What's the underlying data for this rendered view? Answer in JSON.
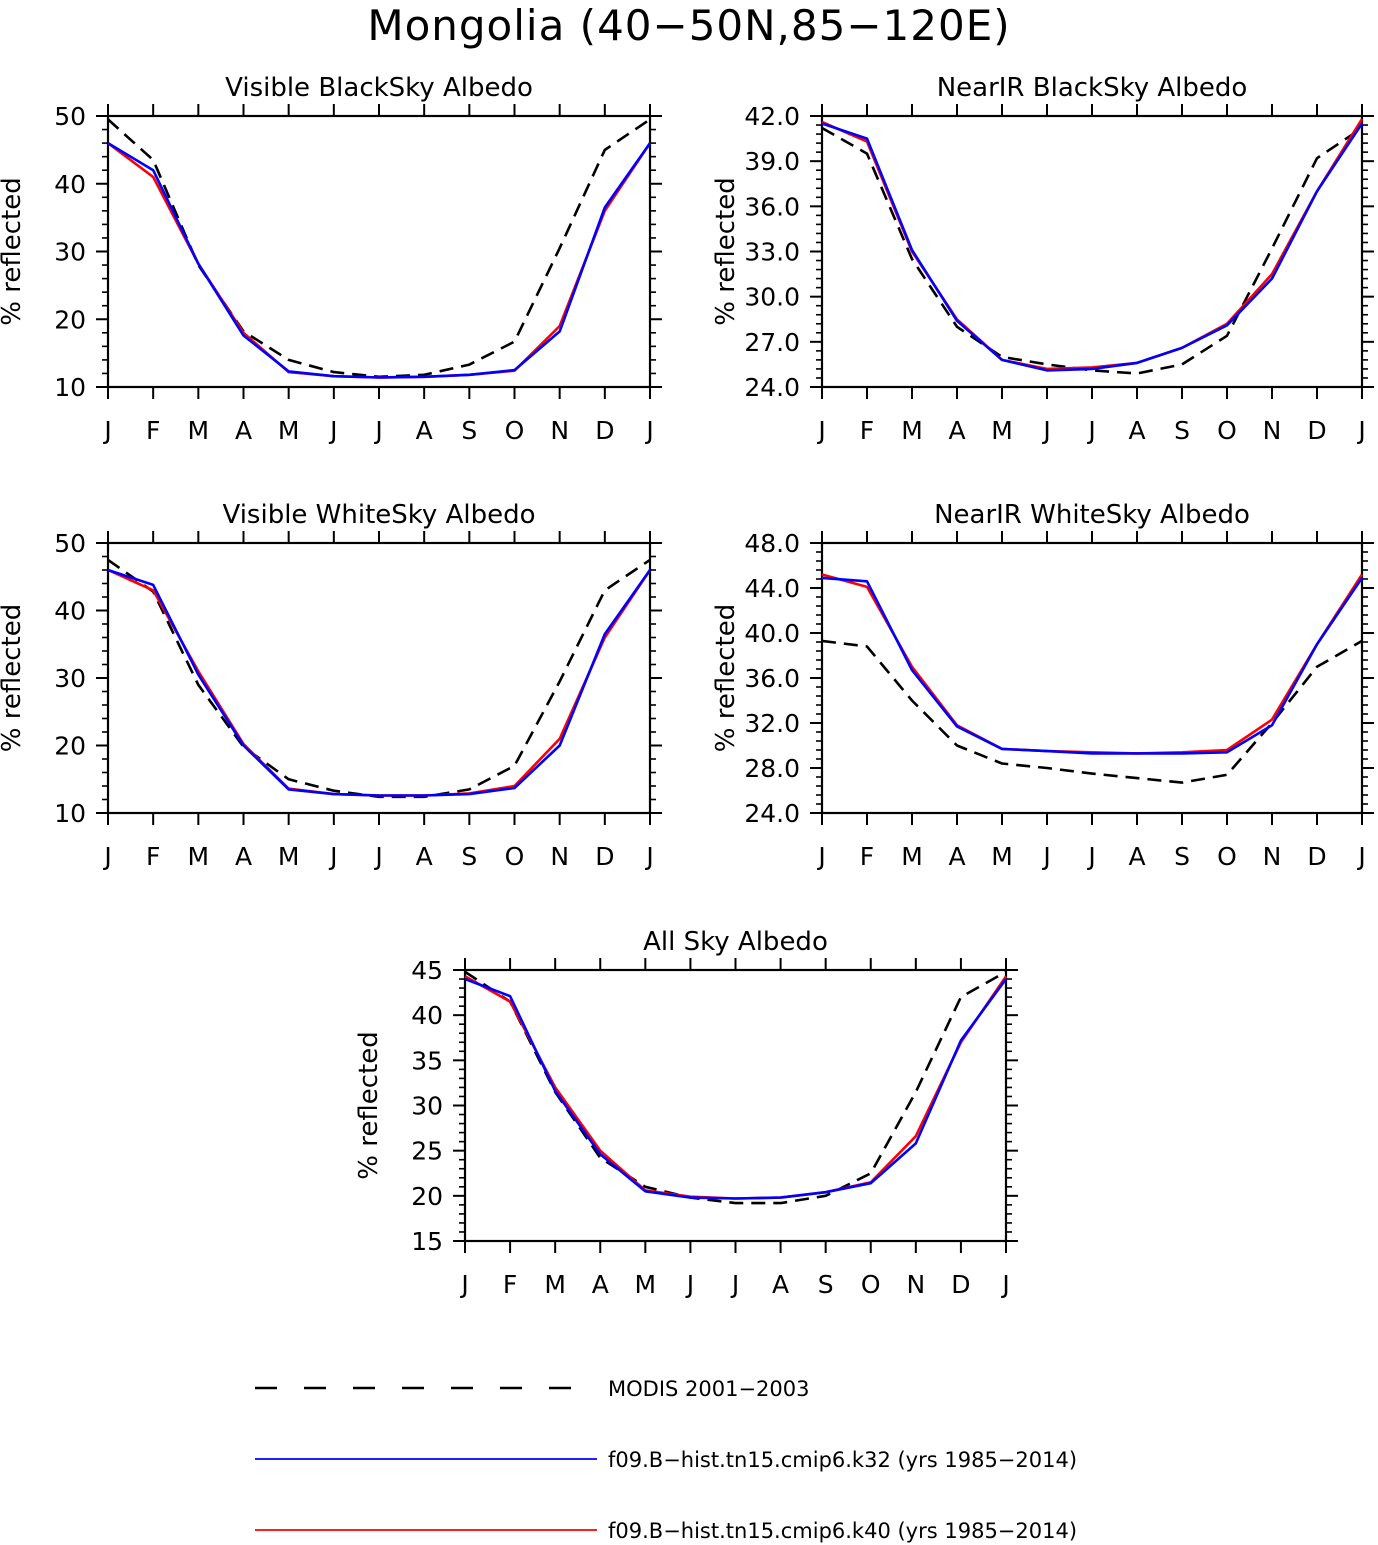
{
  "title": "Mongolia (40−50N,85−120E)",
  "months": [
    "J",
    "F",
    "M",
    "A",
    "M",
    "J",
    "J",
    "A",
    "S",
    "O",
    "N",
    "D",
    "J"
  ],
  "legend": [
    {
      "label": "MODIS 2001−2003",
      "color": "#000000",
      "dash": true
    },
    {
      "label": "f09.B−hist.tn15.cmip6.k32 (yrs 1985−2014)",
      "color": "#0000ff",
      "dash": false
    },
    {
      "label": "f09.B−hist.tn15.cmip6.k40 (yrs 1985−2014)",
      "color": "#ff0000",
      "dash": false
    }
  ],
  "chart_data": [
    {
      "type": "line",
      "title": "Visible BlackSky Albedo",
      "ylabel": "% reflected",
      "ylim": [
        10,
        50
      ],
      "yticks": [
        10,
        20,
        30,
        40,
        50
      ],
      "ytick_labels": [
        "10",
        "20",
        "30",
        "40",
        "50"
      ],
      "x": [
        "J",
        "F",
        "M",
        "A",
        "M",
        "J",
        "J",
        "A",
        "S",
        "O",
        "N",
        "D",
        "J"
      ],
      "series": [
        {
          "name": "MODIS 2001−2003",
          "color": "#000000",
          "dash": true,
          "values": [
            49.5,
            43.5,
            28,
            18.2,
            14,
            12.2,
            11.5,
            11.8,
            13.3,
            16.7,
            30.5,
            45,
            49.5
          ]
        },
        {
          "name": "f09.B−hist.tn15.cmip6.k40 (yrs 1985−2014)",
          "color": "#ff0000",
          "dash": false,
          "values": [
            46,
            41,
            28.2,
            18,
            12.2,
            11.6,
            11.4,
            11.5,
            11.8,
            12.4,
            19,
            36,
            46
          ]
        },
        {
          "name": "f09.B−hist.tn15.cmip6.k32 (yrs 1985−2014)",
          "color": "#0000ff",
          "dash": false,
          "values": [
            46,
            42,
            28.2,
            17.6,
            12.3,
            11.6,
            11.4,
            11.5,
            11.8,
            12.5,
            18.2,
            36.5,
            46
          ]
        }
      ]
    },
    {
      "type": "line",
      "title": "NearIR BlackSky Albedo",
      "ylabel": "% reflected",
      "ylim": [
        24,
        42
      ],
      "yticks": [
        24,
        27,
        30,
        33,
        36,
        39,
        42
      ],
      "ytick_labels": [
        "24.0",
        "27.0",
        "30.0",
        "33.0",
        "36.0",
        "39.0",
        "42.0"
      ],
      "x": [
        "J",
        "F",
        "M",
        "A",
        "M",
        "J",
        "J",
        "A",
        "S",
        "O",
        "N",
        "D",
        "J"
      ],
      "series": [
        {
          "name": "MODIS 2001−2003",
          "color": "#000000",
          "dash": true,
          "values": [
            41.2,
            39.5,
            32.5,
            28,
            26,
            25.5,
            25.1,
            24.9,
            25.5,
            27.4,
            33.2,
            39.2,
            41.2
          ]
        },
        {
          "name": "f09.B−hist.tn15.cmip6.k40 (yrs 1985−2014)",
          "color": "#ff0000",
          "dash": false,
          "values": [
            41.6,
            40.3,
            33,
            28.5,
            25.8,
            25.2,
            25.3,
            25.6,
            26.6,
            28.2,
            31.5,
            37,
            41.8
          ]
        },
        {
          "name": "f09.B−hist.tn15.cmip6.k32 (yrs 1985−2014)",
          "color": "#0000ff",
          "dash": false,
          "values": [
            41.5,
            40.5,
            33.1,
            28.4,
            25.8,
            25.1,
            25.2,
            25.6,
            26.6,
            28.1,
            31.2,
            37,
            41.5
          ]
        }
      ]
    },
    {
      "type": "line",
      "title": "Visible WhiteSky Albedo",
      "ylabel": "% reflected",
      "ylim": [
        10,
        50
      ],
      "yticks": [
        10,
        20,
        30,
        40,
        50
      ],
      "ytick_labels": [
        "10",
        "20",
        "30",
        "40",
        "50"
      ],
      "x": [
        "J",
        "F",
        "M",
        "A",
        "M",
        "J",
        "J",
        "A",
        "S",
        "O",
        "N",
        "D",
        "J"
      ],
      "series": [
        {
          "name": "MODIS 2001−2003",
          "color": "#000000",
          "dash": true,
          "values": [
            47.5,
            42.8,
            29,
            19.8,
            15,
            13.3,
            12.4,
            12.4,
            13.5,
            17,
            29.5,
            43,
            47.5
          ]
        },
        {
          "name": "f09.B−hist.tn15.cmip6.k40 (yrs 1985−2014)",
          "color": "#ff0000",
          "dash": false,
          "values": [
            46,
            43,
            31,
            20.2,
            13.6,
            12.8,
            12.6,
            12.6,
            12.9,
            14,
            21,
            36,
            46
          ]
        },
        {
          "name": "f09.B−hist.tn15.cmip6.k32 (yrs 1985−2014)",
          "color": "#0000ff",
          "dash": false,
          "values": [
            46,
            43.8,
            30.5,
            20,
            13.5,
            12.8,
            12.6,
            12.6,
            12.8,
            13.7,
            20,
            36.5,
            46
          ]
        }
      ]
    },
    {
      "type": "line",
      "title": "NearIR WhiteSky Albedo",
      "ylabel": "% reflected",
      "ylim": [
        24,
        48
      ],
      "yticks": [
        24,
        28,
        32,
        36,
        40,
        44,
        48
      ],
      "ytick_labels": [
        "24.0",
        "28.0",
        "32.0",
        "36.0",
        "40.0",
        "44.0",
        "48.0"
      ],
      "x": [
        "J",
        "F",
        "M",
        "A",
        "M",
        "J",
        "J",
        "A",
        "S",
        "O",
        "N",
        "D",
        "J"
      ],
      "series": [
        {
          "name": "MODIS 2001−2003",
          "color": "#000000",
          "dash": true,
          "values": [
            39.3,
            38.8,
            34,
            30,
            28.4,
            28,
            27.5,
            27.1,
            26.7,
            27.4,
            32,
            37,
            39.3
          ]
        },
        {
          "name": "f09.B−hist.tn15.cmip6.k40 (yrs 1985−2014)",
          "color": "#ff0000",
          "dash": false,
          "values": [
            45.2,
            44.1,
            37,
            31.8,
            29.7,
            29.5,
            29.4,
            29.3,
            29.4,
            29.6,
            32.3,
            39,
            45.2
          ]
        },
        {
          "name": "f09.B−hist.tn15.cmip6.k32 (yrs 1985−2014)",
          "color": "#0000ff",
          "dash": false,
          "values": [
            44.9,
            44.6,
            36.7,
            31.7,
            29.7,
            29.5,
            29.3,
            29.3,
            29.3,
            29.4,
            31.8,
            39,
            44.9
          ]
        }
      ]
    },
    {
      "type": "line",
      "title": "All Sky Albedo",
      "ylabel": "% reflected",
      "ylim": [
        15,
        45
      ],
      "yticks": [
        15,
        20,
        25,
        30,
        35,
        40,
        45
      ],
      "ytick_labels": [
        "15",
        "20",
        "25",
        "30",
        "35",
        "40",
        "45"
      ],
      "x": [
        "J",
        "F",
        "M",
        "A",
        "M",
        "J",
        "J",
        "A",
        "S",
        "O",
        "N",
        "D",
        "J"
      ],
      "series": [
        {
          "name": "MODIS 2001−2003",
          "color": "#000000",
          "dash": true,
          "values": [
            44.8,
            41.5,
            31.5,
            24.2,
            21,
            19.8,
            19.2,
            19.2,
            20,
            22.5,
            31.5,
            42,
            44.8
          ]
        },
        {
          "name": "f09.B−hist.tn15.cmip6.k40 (yrs 1985−2014)",
          "color": "#ff0000",
          "dash": false,
          "values": [
            44.3,
            41.5,
            32,
            25,
            20.6,
            19.9,
            19.7,
            19.8,
            20.4,
            21.5,
            26.6,
            37,
            44.3
          ]
        },
        {
          "name": "f09.B−hist.tn15.cmip6.k32 (yrs 1985−2014)",
          "color": "#0000ff",
          "dash": false,
          "values": [
            44,
            42.1,
            31.6,
            24.6,
            20.5,
            19.8,
            19.7,
            19.8,
            20.4,
            21.4,
            25.8,
            37.2,
            44
          ]
        }
      ]
    }
  ]
}
